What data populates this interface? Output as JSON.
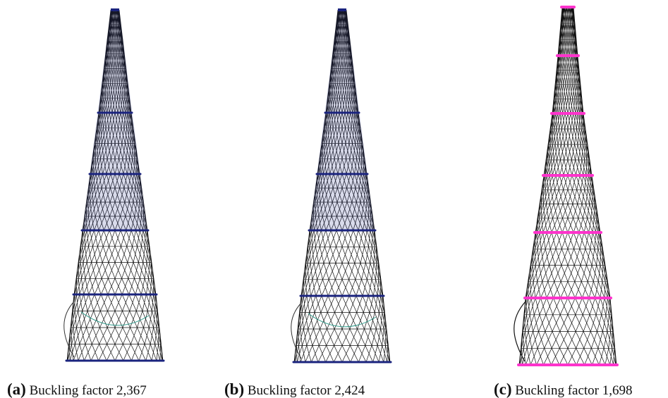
{
  "figures": [
    {
      "label": "(a)",
      "caption": "Buckling factor 2,367"
    },
    {
      "label": "(b)",
      "caption": "Buckling factor 2,424"
    },
    {
      "label": "(c)",
      "caption": "Buckling factor 1,698"
    }
  ]
}
